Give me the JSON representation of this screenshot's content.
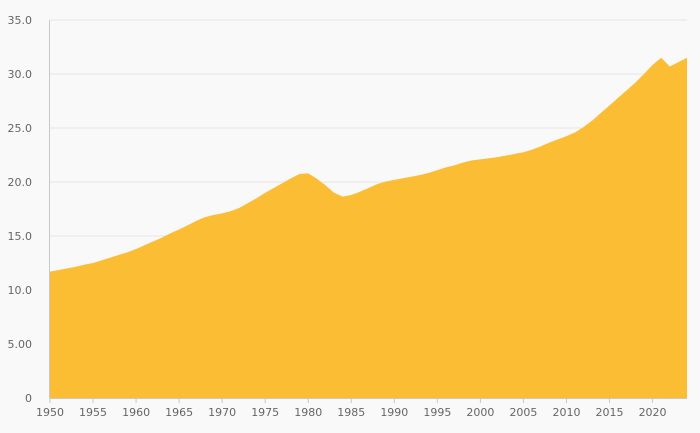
{
  "chart_data": {
    "type": "area",
    "title": "",
    "xlabel": "",
    "ylabel": "",
    "xlim": [
      1950,
      2024
    ],
    "ylim": [
      0,
      35
    ],
    "y_ticks": [
      0,
      5,
      10,
      15,
      20,
      25,
      30,
      35
    ],
    "y_tick_labels": [
      "0",
      "5.00",
      "10.0",
      "15.0",
      "20.0",
      "25.0",
      "30.0",
      "35.0"
    ],
    "x_ticks": [
      1950,
      1955,
      1960,
      1965,
      1970,
      1975,
      1980,
      1985,
      1990,
      1995,
      2000,
      2005,
      2010,
      2015,
      2020
    ],
    "x_tick_labels": [
      "1950",
      "1955",
      "1960",
      "1965",
      "1970",
      "1975",
      "1980",
      "1985",
      "1990",
      "1995",
      "2000",
      "2005",
      "2010",
      "2015",
      "2020"
    ],
    "grid": true,
    "legend": "none",
    "colors": {
      "fill": "#fbbd33",
      "grid": "#e5e5e5",
      "axis": "#c8c8c8"
    },
    "series": [
      {
        "x": [
          1950,
          1951,
          1952,
          1953,
          1954,
          1955,
          1956,
          1957,
          1958,
          1959,
          1960,
          1961,
          1962,
          1963,
          1964,
          1965,
          1966,
          1967,
          1968,
          1969,
          1970,
          1971,
          1972,
          1973,
          1974,
          1975,
          1976,
          1977,
          1978,
          1979,
          1980,
          1981,
          1982,
          1983,
          1984,
          1985,
          1986,
          1987,
          1988,
          1989,
          1990,
          1991,
          1992,
          1993,
          1994,
          1995,
          1996,
          1997,
          1998,
          1999,
          2000,
          2001,
          2002,
          2003,
          2004,
          2005,
          2006,
          2007,
          2008,
          2009,
          2010,
          2011,
          2012,
          2013,
          2014,
          2015,
          2016,
          2017,
          2018,
          2019,
          2020,
          2021,
          2022,
          2023,
          2024
        ],
        "values": [
          11.7,
          11.85,
          12.0,
          12.15,
          12.35,
          12.5,
          12.75,
          13.0,
          13.25,
          13.5,
          13.8,
          14.15,
          14.5,
          14.85,
          15.25,
          15.6,
          16.0,
          16.4,
          16.75,
          16.95,
          17.1,
          17.3,
          17.6,
          18.05,
          18.5,
          19.0,
          19.45,
          19.9,
          20.35,
          20.75,
          20.8,
          20.3,
          19.7,
          19.0,
          18.65,
          18.8,
          19.1,
          19.45,
          19.8,
          20.05,
          20.2,
          20.35,
          20.5,
          20.65,
          20.85,
          21.1,
          21.35,
          21.55,
          21.8,
          22.0,
          22.1,
          22.2,
          22.3,
          22.45,
          22.6,
          22.75,
          23.0,
          23.3,
          23.65,
          23.95,
          24.25,
          24.6,
          25.1,
          25.7,
          26.4,
          27.1,
          27.8,
          28.5,
          29.2,
          30.0,
          30.85,
          31.5,
          30.7,
          31.1,
          31.5
        ]
      }
    ]
  }
}
